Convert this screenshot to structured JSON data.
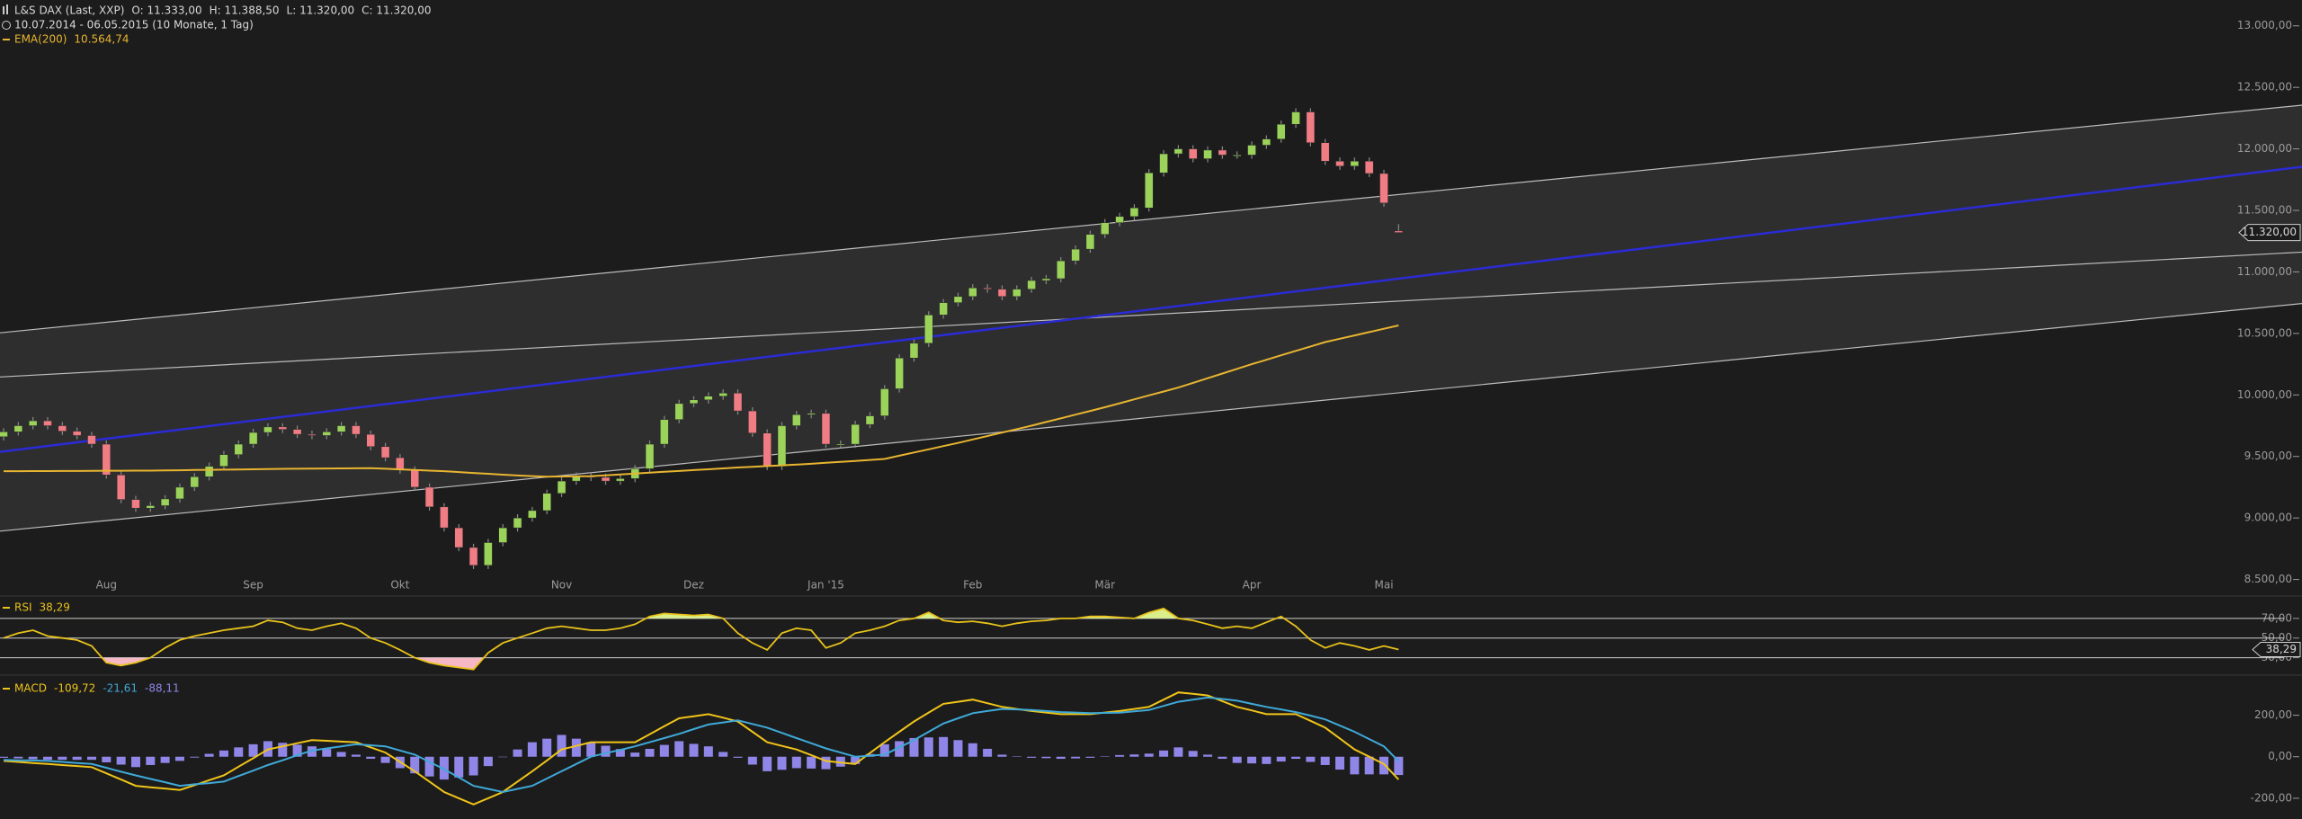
{
  "chart_data": [
    {
      "type": "candlestick",
      "title": "L&S DAX (Last, XXP)",
      "ohlc_labels": [
        "O: 11.333,00",
        "H: 11.388,50",
        "L: 11.320,00",
        "C: 11.320,00"
      ],
      "subtitle": "10.07.2014 - 06.05.2015 (10 Monate, 1 Tag)",
      "categories": [
        null,
        null,
        null,
        null,
        null,
        null,
        null,
        "Aug",
        null,
        null,
        null,
        null,
        null,
        null,
        null,
        null,
        null,
        "Sep",
        null,
        null,
        null,
        null,
        null,
        null,
        null,
        null,
        null,
        "Okt",
        null,
        null,
        null,
        null,
        null,
        null,
        null,
        null,
        null,
        null,
        "Nov",
        null,
        null,
        null,
        null,
        null,
        null,
        null,
        null,
        "Dez",
        null,
        null,
        null,
        null,
        null,
        null,
        null,
        null,
        "Jan '15",
        null,
        null,
        null,
        null,
        null,
        null,
        null,
        null,
        null,
        "Feb",
        null,
        null,
        null,
        null,
        null,
        null,
        null,
        null,
        "Mär",
        null,
        null,
        null,
        null,
        null,
        null,
        null,
        null,
        null,
        "Apr",
        null,
        null,
        null,
        null,
        null,
        null,
        null,
        null,
        "Mai",
        null
      ],
      "open": [
        9660,
        9700,
        9750,
        9790,
        9750,
        9705,
        9670,
        9600,
        9350,
        9150,
        9080,
        9100,
        9155,
        9250,
        9335,
        9420,
        9515,
        9600,
        9695,
        9740,
        9720,
        9680,
        9670,
        9700,
        9750,
        9680,
        9580,
        9490,
        9390,
        9250,
        9090,
        8920,
        8760,
        8615,
        8800,
        8920,
        9000,
        9060,
        9200,
        9300,
        9340,
        9330,
        9300,
        9320,
        9400,
        9600,
        9800,
        9930,
        9960,
        9990,
        10015,
        9870,
        9690,
        9420,
        9750,
        9840,
        9850,
        9600,
        9600,
        9760,
        9830,
        10050,
        10300,
        10420,
        10650,
        10750,
        10800,
        10870,
        10860,
        10800,
        10860,
        10930,
        10945,
        11090,
        11185,
        11305,
        11400,
        11450,
        11520,
        11805,
        11960,
        12000,
        11920,
        11990,
        11950,
        11950,
        12030,
        12080,
        12200,
        12300,
        12050,
        11900,
        11860,
        11900,
        11800,
        11333
      ],
      "high": [
        9730,
        9780,
        9820,
        9820,
        9780,
        9735,
        9700,
        9630,
        9380,
        9180,
        9130,
        9185,
        9280,
        9365,
        9450,
        9545,
        9630,
        9725,
        9770,
        9770,
        9750,
        9710,
        9730,
        9780,
        9780,
        9710,
        9610,
        9520,
        9420,
        9280,
        9120,
        8950,
        8790,
        8830,
        8950,
        9030,
        9090,
        9230,
        9330,
        9370,
        9370,
        9360,
        9350,
        9430,
        9630,
        9830,
        9960,
        9990,
        10020,
        10045,
        10045,
        9900,
        9720,
        9780,
        9870,
        9880,
        9880,
        9630,
        9790,
        9860,
        10080,
        10330,
        10450,
        10680,
        10780,
        10830,
        10900,
        10900,
        10890,
        10890,
        10960,
        10975,
        11120,
        11215,
        11335,
        11430,
        11480,
        11550,
        11835,
        11990,
        12030,
        12030,
        12020,
        12020,
        11980,
        12060,
        12110,
        12230,
        12330,
        12330,
        12080,
        11930,
        11930,
        11930,
        11830,
        11388.5
      ],
      "low": [
        9630,
        9670,
        9720,
        9720,
        9675,
        9640,
        9570,
        9320,
        9120,
        9050,
        9050,
        9070,
        9125,
        9220,
        9305,
        9390,
        9485,
        9570,
        9665,
        9690,
        9650,
        9640,
        9640,
        9670,
        9650,
        9550,
        9460,
        9360,
        9220,
        9060,
        8890,
        8730,
        8585,
        8585,
        8770,
        8890,
        8970,
        9030,
        9170,
        9270,
        9300,
        9270,
        9270,
        9290,
        9370,
        9570,
        9770,
        9900,
        9930,
        9960,
        9840,
        9660,
        9390,
        9390,
        9720,
        9810,
        9570,
        9570,
        9570,
        9730,
        9800,
        10020,
        10270,
        10390,
        10620,
        10720,
        10770,
        10830,
        10770,
        10770,
        10830,
        10900,
        10915,
        11060,
        11155,
        11275,
        11370,
        11420,
        11490,
        11775,
        11930,
        11890,
        11890,
        11920,
        11920,
        11920,
        12000,
        12050,
        12170,
        12020,
        11870,
        11830,
        11830,
        11770,
        11530,
        11320
      ],
      "close": [
        9700,
        9750,
        9790,
        9750,
        9705,
        9670,
        9600,
        9350,
        9150,
        9080,
        9100,
        9155,
        9250,
        9335,
        9420,
        9515,
        9600,
        9695,
        9740,
        9720,
        9680,
        9670,
        9700,
        9750,
        9680,
        9580,
        9490,
        9390,
        9250,
        9090,
        8920,
        8760,
        8615,
        8800,
        8920,
        9000,
        9060,
        9200,
        9300,
        9340,
        9330,
        9300,
        9320,
        9400,
        9600,
        9800,
        9930,
        9960,
        9990,
        10015,
        9870,
        9690,
        9420,
        9750,
        9840,
        9850,
        9600,
        9600,
        9760,
        9830,
        10050,
        10300,
        10420,
        10650,
        10750,
        10800,
        10870,
        10860,
        10800,
        10860,
        10930,
        10945,
        11090,
        11185,
        11305,
        11400,
        11450,
        11520,
        11805,
        11960,
        12000,
        11920,
        11990,
        11950,
        11950,
        12030,
        12080,
        12200,
        12300,
        12050,
        11900,
        11860,
        11900,
        11800,
        11560,
        11320
      ],
      "up_color": "#9bd35a",
      "down_color": "#f07c84",
      "last_label": "11.320,00",
      "series": [
        {
          "name": "EMA(200)",
          "color": "#e8b530",
          "last_label": "10.564,74",
          "values": [
            9380,
            9380,
            9381,
            9381,
            9382,
            9382,
            9383,
            9384,
            9384,
            9385,
            9385,
            9387,
            9388,
            9390,
            9391,
            9393,
            9394,
            9396,
            9397,
            9399,
            9400,
            9401,
            9402,
            9403,
            9404,
            9405,
            9400,
            9395,
            9390,
            9385,
            9380,
            9373,
            9366,
            9359,
            9352,
            9345,
            9340,
            9335,
            9337,
            9338,
            9340,
            9347,
            9354,
            9361,
            9368,
            9375,
            9382,
            9389,
            9396,
            9403,
            9410,
            9416,
            9422,
            9428,
            9434,
            9440,
            9448,
            9456,
            9464,
            9472,
            9480,
            9506,
            9532,
            9558,
            9584,
            9610,
            9638,
            9666,
            9694,
            9722,
            9750,
            9780,
            9810,
            9840,
            9870,
            9900,
            9932,
            9964,
            9996,
            10028,
            10060,
            10098,
            10136,
            10174,
            10212,
            10250,
            10286,
            10322,
            10358,
            10394,
            10430,
            10457,
            10484,
            10511,
            10538,
            10564.74
          ]
        }
      ],
      "channel_lines": [
        {
          "color": "#bdbdbd",
          "values": [
            10505,
            12355
          ]
        },
        {
          "color": "#bdbdbd",
          "values": [
            10146,
            11161
          ]
        },
        {
          "color": "#2b2bd6",
          "values": [
            9537,
            11854
          ]
        },
        {
          "color": "#bdbdbd",
          "values": [
            8893,
            10743
          ]
        }
      ],
      "ylim": [
        8380,
        13210
      ],
      "yticks": [
        {
          "value": 8500,
          "label": "8.500,00"
        },
        {
          "value": 9000,
          "label": "9.000,00"
        },
        {
          "value": 9500,
          "label": "9.500,00"
        },
        {
          "value": 10000,
          "label": "10.000,00"
        },
        {
          "value": 10500,
          "label": "10.500,00"
        },
        {
          "value": 11000,
          "label": "11.000,00"
        },
        {
          "value": 11500,
          "label": "11.500,00"
        },
        {
          "value": 12000,
          "label": "12.000,00"
        },
        {
          "value": 12500,
          "label": "12.500,00"
        },
        {
          "value": 13000,
          "label": "13.000,00"
        }
      ],
      "grid": false
    },
    {
      "type": "line",
      "series": [
        {
          "name": "RSI",
          "color": "#e8c21a",
          "last_label": "38,29",
          "values": [
            50,
            55,
            58,
            52,
            50,
            48,
            42,
            25,
            22,
            25,
            30,
            40,
            48,
            52,
            55,
            58,
            60,
            62,
            68,
            66,
            60,
            58,
            62,
            65,
            60,
            50,
            45,
            38,
            30,
            25,
            22,
            20,
            18,
            35,
            45,
            50,
            55,
            60,
            62,
            60,
            58,
            58,
            60,
            64,
            72,
            75,
            74,
            73,
            74,
            70,
            55,
            45,
            38,
            55,
            60,
            58,
            40,
            45,
            55,
            58,
            62,
            68,
            70,
            76,
            68,
            66,
            67,
            65,
            62,
            65,
            67,
            68,
            70,
            70,
            72,
            72,
            71,
            70,
            76,
            80,
            70,
            68,
            64,
            60,
            62,
            60,
            66,
            72,
            62,
            48,
            40,
            45,
            42,
            38,
            42,
            38.29
          ]
        }
      ],
      "overbought_color": "#d9f08a",
      "oversold_color": "#f6b8c4",
      "ylim": [
        15,
        90
      ],
      "yticks": [
        {
          "value": 30,
          "label": "30,00"
        },
        {
          "value": 50,
          "label": "50,00"
        },
        {
          "value": 70,
          "label": "70,00"
        }
      ],
      "grid": true
    },
    {
      "type": "macd",
      "series": [
        {
          "name": "MACD",
          "color": "#f0c419",
          "last_label": "-109,72",
          "values": [
            -20,
            -25,
            -30,
            -35,
            -40,
            -45,
            -50,
            -80,
            -110,
            -140,
            -147,
            -153,
            -160,
            -137,
            -113,
            -90,
            -48,
            -7,
            35,
            50,
            65,
            80,
            77,
            73,
            70,
            45,
            20,
            -25,
            -70,
            -120,
            -170,
            -200,
            -230,
            -200,
            -170,
            -120,
            -70,
            -18,
            35,
            52,
            70,
            70,
            70,
            70,
            108,
            147,
            185,
            195,
            205,
            188,
            170,
            120,
            70,
            52,
            35,
            8,
            -20,
            -28,
            -35,
            18,
            70,
            120,
            170,
            213,
            255,
            265,
            275,
            258,
            240,
            230,
            220,
            213,
            205,
            205,
            205,
            213,
            220,
            230,
            240,
            275,
            310,
            303,
            295,
            268,
            240,
            223,
            205,
            205,
            205,
            173,
            140,
            88,
            35,
            0,
            -35,
            -109.72
          ]
        },
        {
          "color": "#3fa9d8",
          "last_label": "-21,61",
          "values": [
            -15,
            -17,
            -18,
            -20,
            -25,
            -30,
            -35,
            -53,
            -72,
            -90,
            -107,
            -123,
            -140,
            -133,
            -127,
            -120,
            -93,
            -67,
            -40,
            -17,
            7,
            30,
            40,
            50,
            60,
            55,
            50,
            30,
            10,
            -25,
            -60,
            -100,
            -140,
            -155,
            -170,
            -155,
            -140,
            -105,
            -70,
            -35,
            0,
            17,
            33,
            50,
            70,
            90,
            110,
            133,
            155,
            165,
            175,
            158,
            140,
            115,
            90,
            65,
            40,
            20,
            0,
            5,
            10,
            45,
            80,
            120,
            160,
            185,
            210,
            220,
            230,
            228,
            225,
            220,
            215,
            213,
            210,
            211,
            212,
            219,
            225,
            245,
            265,
            275,
            285,
            278,
            270,
            255,
            240,
            228,
            215,
            198,
            180,
            150,
            120,
            85,
            50,
            -21.61
          ]
        },
        {
          "color": "#8f86e8",
          "kind": "bar",
          "last_label": "-88,11",
          "values": [
            -5,
            -8,
            -12,
            -15,
            -15,
            -15,
            -15,
            -27,
            -38,
            -50,
            -40,
            -30,
            -20,
            -4,
            14,
            30,
            45,
            60,
            75,
            67,
            58,
            50,
            37,
            23,
            10,
            -10,
            -30,
            -55,
            -80,
            -95,
            -110,
            -100,
            -90,
            -45,
            0,
            35,
            70,
            87,
            105,
            87,
            70,
            53,
            37,
            20,
            38,
            57,
            75,
            62,
            50,
            23,
            -5,
            -38,
            -70,
            -63,
            -55,
            -57,
            -60,
            -48,
            -35,
            13,
            60,
            75,
            90,
            93,
            95,
            80,
            65,
            38,
            10,
            2,
            -5,
            -7,
            -10,
            -8,
            -5,
            2,
            8,
            11,
            15,
            30,
            45,
            28,
            10,
            -10,
            -30,
            -32,
            -35,
            -23,
            -10,
            -25,
            -40,
            -62,
            -85,
            -85,
            -85,
            -88.11
          ]
        }
      ],
      "ylim": [
        -300,
        380
      ],
      "yticks": [
        {
          "value": -200,
          "label": "-200,00"
        },
        {
          "value": 0,
          "label": "0,00"
        },
        {
          "value": 200,
          "label": "200,00"
        }
      ],
      "grid": false
    }
  ]
}
